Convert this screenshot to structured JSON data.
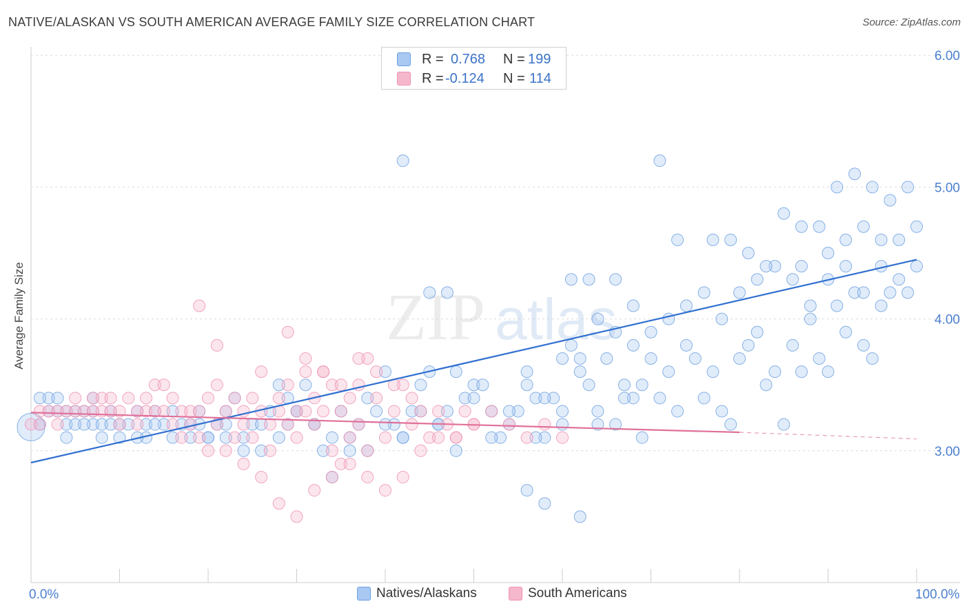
{
  "title": "NATIVE/ALASKAN VS SOUTH AMERICAN AVERAGE FAMILY SIZE CORRELATION CHART",
  "source": "Source: ZipAtlas.com",
  "watermark": {
    "zip": "ZIP",
    "atlas": "atlas"
  },
  "stats": {
    "r_label": "R =",
    "n_label": "N =",
    "rows": [
      {
        "r": "0.768",
        "n": "199",
        "color": "#a9c8f2"
      },
      {
        "r": "-0.124",
        "n": "114",
        "color": "#f5b7cb"
      }
    ]
  },
  "chart_data": {
    "type": "scatter",
    "title": "NATIVE/ALASKAN VS SOUTH AMERICAN AVERAGE FAMILY SIZE CORRELATION CHART",
    "xlabel": "",
    "ylabel": "Average Family Size",
    "xlim": [
      0,
      100
    ],
    "ylim": [
      2.0,
      6.1
    ],
    "y_ticks": [
      3.0,
      4.0,
      5.0,
      6.0
    ],
    "y_tick_labels": [
      "3.00",
      "4.00",
      "5.00",
      "6.00"
    ],
    "x_tick_labels": [
      "0.0%",
      "100.0%"
    ],
    "grid": true,
    "legend_position": "bottom",
    "series": [
      {
        "name": "Natives/Alaskans",
        "color": "#6a9fe0",
        "trend": {
          "x": [
            0,
            100
          ],
          "y": [
            2.91,
            4.45
          ]
        },
        "points": [
          [
            2,
            3.4
          ],
          [
            2,
            3.3
          ],
          [
            3,
            3.4
          ],
          [
            4,
            3.3
          ],
          [
            4,
            3.2
          ],
          [
            5,
            3.2
          ],
          [
            6,
            3.3
          ],
          [
            7,
            3.2
          ],
          [
            7,
            3.4
          ],
          [
            8,
            3.2
          ],
          [
            9,
            3.3
          ],
          [
            9,
            3.2
          ],
          [
            10,
            3.1
          ],
          [
            11,
            3.2
          ],
          [
            12,
            3.3
          ],
          [
            13,
            3.1
          ],
          [
            13,
            3.2
          ],
          [
            14,
            3.3
          ],
          [
            15,
            3.2
          ],
          [
            16,
            3.1
          ],
          [
            17,
            3.2
          ],
          [
            18,
            3.1
          ],
          [
            19,
            3.2
          ],
          [
            19,
            3.3
          ],
          [
            20,
            3.1
          ],
          [
            21,
            3.2
          ],
          [
            22,
            3.3
          ],
          [
            22,
            3.1
          ],
          [
            23,
            3.4
          ],
          [
            24,
            3.1
          ],
          [
            25,
            3.2
          ],
          [
            26,
            3.0
          ],
          [
            27,
            3.3
          ],
          [
            28,
            3.5
          ],
          [
            29,
            3.2
          ],
          [
            29,
            3.4
          ],
          [
            30,
            3.3
          ],
          [
            31,
            3.5
          ],
          [
            32,
            3.2
          ],
          [
            33,
            3.0
          ],
          [
            34,
            3.1
          ],
          [
            35,
            3.3
          ],
          [
            36,
            3.1
          ],
          [
            37,
            3.2
          ],
          [
            38,
            3.4
          ],
          [
            39,
            3.3
          ],
          [
            40,
            3.6
          ],
          [
            41,
            3.2
          ],
          [
            42,
            3.1
          ],
          [
            43,
            3.3
          ],
          [
            44,
            3.5
          ],
          [
            45,
            3.6
          ],
          [
            46,
            3.2
          ],
          [
            47,
            3.3
          ],
          [
            48,
            3.6
          ],
          [
            49,
            3.4
          ],
          [
            50,
            3.5
          ],
          [
            51,
            3.5
          ],
          [
            52,
            3.3
          ],
          [
            53,
            3.1
          ],
          [
            54,
            3.2
          ],
          [
            55,
            3.3
          ],
          [
            56,
            3.5
          ],
          [
            57,
            3.4
          ],
          [
            58,
            3.1
          ],
          [
            59,
            3.4
          ],
          [
            60,
            3.2
          ],
          [
            61,
            3.8
          ],
          [
            62,
            3.7
          ],
          [
            63,
            3.5
          ],
          [
            64,
            3.3
          ],
          [
            65,
            3.7
          ],
          [
            66,
            3.2
          ],
          [
            67,
            3.5
          ],
          [
            68,
            3.4
          ],
          [
            69,
            3.1
          ],
          [
            70,
            3.7
          ],
          [
            71,
            3.4
          ],
          [
            72,
            3.6
          ],
          [
            73,
            3.3
          ],
          [
            74,
            3.8
          ],
          [
            75,
            3.7
          ],
          [
            76,
            3.4
          ],
          [
            77,
            3.6
          ],
          [
            78,
            3.3
          ],
          [
            79,
            3.2
          ],
          [
            80,
            3.7
          ],
          [
            81,
            3.8
          ],
          [
            82,
            3.9
          ],
          [
            83,
            3.5
          ],
          [
            84,
            3.6
          ],
          [
            85,
            3.2
          ],
          [
            86,
            3.8
          ],
          [
            87,
            3.6
          ],
          [
            88,
            4.0
          ],
          [
            89,
            3.7
          ],
          [
            90,
            3.6
          ],
          [
            91,
            4.1
          ],
          [
            92,
            3.9
          ],
          [
            93,
            4.2
          ],
          [
            94,
            3.8
          ],
          [
            95,
            3.7
          ],
          [
            96,
            4.1
          ],
          [
            97,
            4.2
          ],
          [
            98,
            4.3
          ],
          [
            99,
            4.2
          ],
          [
            100,
            4.4
          ],
          [
            98,
            4.6
          ],
          [
            96,
            4.4
          ],
          [
            94,
            4.2
          ],
          [
            92,
            4.4
          ],
          [
            90,
            4.3
          ],
          [
            88,
            4.1
          ],
          [
            86,
            4.3
          ],
          [
            84,
            4.4
          ],
          [
            82,
            4.3
          ],
          [
            80,
            4.2
          ],
          [
            78,
            4.0
          ],
          [
            76,
            4.2
          ],
          [
            74,
            4.1
          ],
          [
            72,
            4.0
          ],
          [
            70,
            3.9
          ],
          [
            68,
            3.8
          ],
          [
            66,
            3.9
          ],
          [
            64,
            4.0
          ],
          [
            62,
            3.6
          ],
          [
            60,
            3.7
          ],
          [
            58,
            3.4
          ],
          [
            56,
            3.6
          ],
          [
            54,
            3.3
          ],
          [
            52,
            3.1
          ],
          [
            50,
            3.4
          ],
          [
            48,
            3.0
          ],
          [
            46,
            3.2
          ],
          [
            44,
            3.3
          ],
          [
            42,
            3.1
          ],
          [
            40,
            3.2
          ],
          [
            38,
            3.0
          ],
          [
            36,
            3.0
          ],
          [
            34,
            2.8
          ],
          [
            32,
            3.2
          ],
          [
            30,
            3.3
          ],
          [
            28,
            3.1
          ],
          [
            26,
            3.2
          ],
          [
            24,
            3.0
          ],
          [
            22,
            3.2
          ],
          [
            20,
            3.1
          ],
          [
            18,
            3.2
          ],
          [
            16,
            3.3
          ],
          [
            14,
            3.2
          ],
          [
            12,
            3.1
          ],
          [
            10,
            3.2
          ],
          [
            8,
            3.1
          ],
          [
            6,
            3.2
          ],
          [
            4,
            3.1
          ],
          [
            1,
            3.2
          ],
          [
            1,
            3.4
          ],
          [
            3,
            3.3
          ],
          [
            5,
            3.3
          ],
          [
            7,
            3.3
          ],
          [
            45,
            4.2
          ],
          [
            47,
            4.2
          ],
          [
            42,
            5.2
          ],
          [
            71,
            5.2
          ],
          [
            56,
            2.7
          ],
          [
            58,
            2.6
          ],
          [
            62,
            2.5
          ],
          [
            73,
            4.6
          ],
          [
            77,
            4.6
          ],
          [
            79,
            4.6
          ],
          [
            81,
            4.5
          ],
          [
            83,
            4.4
          ],
          [
            85,
            4.8
          ],
          [
            87,
            4.7
          ],
          [
            89,
            4.7
          ],
          [
            91,
            5.0
          ],
          [
            93,
            5.1
          ],
          [
            95,
            5.0
          ],
          [
            97,
            4.9
          ],
          [
            99,
            5.0
          ],
          [
            87,
            4.4
          ],
          [
            90,
            4.5
          ],
          [
            92,
            4.6
          ],
          [
            94,
            4.7
          ],
          [
            96,
            4.6
          ],
          [
            100,
            4.7
          ],
          [
            61,
            4.3
          ],
          [
            63,
            4.3
          ],
          [
            66,
            4.3
          ],
          [
            68,
            4.1
          ],
          [
            57,
            3.1
          ],
          [
            60,
            3.3
          ],
          [
            64,
            3.2
          ],
          [
            67,
            3.4
          ],
          [
            69,
            3.5
          ]
        ]
      },
      {
        "name": "South Americans",
        "color": "#ee8fb0",
        "trend": {
          "x": [
            0,
            80
          ],
          "y": [
            3.29,
            3.14
          ]
        },
        "trend_dashed": {
          "x": [
            80,
            100
          ],
          "y": [
            3.14,
            3.09
          ]
        },
        "points": [
          [
            0,
            3.2
          ],
          [
            1,
            3.3
          ],
          [
            1,
            3.2
          ],
          [
            2,
            3.3
          ],
          [
            3,
            3.2
          ],
          [
            3,
            3.3
          ],
          [
            4,
            3.3
          ],
          [
            5,
            3.3
          ],
          [
            5,
            3.4
          ],
          [
            6,
            3.3
          ],
          [
            7,
            3.4
          ],
          [
            7,
            3.3
          ],
          [
            8,
            3.4
          ],
          [
            8,
            3.3
          ],
          [
            9,
            3.3
          ],
          [
            9,
            3.4
          ],
          [
            10,
            3.3
          ],
          [
            10,
            3.2
          ],
          [
            11,
            3.4
          ],
          [
            12,
            3.3
          ],
          [
            12,
            3.2
          ],
          [
            13,
            3.4
          ],
          [
            13,
            3.3
          ],
          [
            14,
            3.5
          ],
          [
            14,
            3.3
          ],
          [
            15,
            3.3
          ],
          [
            15,
            3.5
          ],
          [
            16,
            3.2
          ],
          [
            16,
            3.4
          ],
          [
            17,
            3.3
          ],
          [
            17,
            3.1
          ],
          [
            18,
            3.3
          ],
          [
            18,
            3.2
          ],
          [
            19,
            3.3
          ],
          [
            19,
            3.1
          ],
          [
            20,
            3.4
          ],
          [
            20,
            3.0
          ],
          [
            21,
            3.5
          ],
          [
            21,
            3.2
          ],
          [
            22,
            3.3
          ],
          [
            22,
            3.0
          ],
          [
            23,
            3.4
          ],
          [
            23,
            3.1
          ],
          [
            24,
            3.3
          ],
          [
            24,
            3.2
          ],
          [
            25,
            3.4
          ],
          [
            25,
            3.1
          ],
          [
            26,
            3.6
          ],
          [
            26,
            3.3
          ],
          [
            27,
            3.2
          ],
          [
            27,
            3.0
          ],
          [
            28,
            3.4
          ],
          [
            28,
            3.3
          ],
          [
            29,
            3.5
          ],
          [
            29,
            3.2
          ],
          [
            30,
            3.3
          ],
          [
            30,
            3.1
          ],
          [
            31,
            3.6
          ],
          [
            31,
            3.3
          ],
          [
            32,
            3.4
          ],
          [
            32,
            3.2
          ],
          [
            33,
            3.3
          ],
          [
            33,
            3.6
          ],
          [
            34,
            3.5
          ],
          [
            34,
            3.0
          ],
          [
            35,
            3.3
          ],
          [
            35,
            2.9
          ],
          [
            36,
            3.4
          ],
          [
            36,
            3.1
          ],
          [
            37,
            3.2
          ],
          [
            37,
            3.5
          ],
          [
            38,
            3.7
          ],
          [
            38,
            3.0
          ],
          [
            39,
            3.4
          ],
          [
            40,
            3.1
          ],
          [
            41,
            3.3
          ],
          [
            42,
            3.5
          ],
          [
            43,
            3.2
          ],
          [
            44,
            3.3
          ],
          [
            45,
            3.1
          ],
          [
            46,
            3.3
          ],
          [
            47,
            3.2
          ],
          [
            48,
            3.1
          ],
          [
            49,
            3.3
          ],
          [
            50,
            3.2
          ],
          [
            52,
            3.3
          ],
          [
            54,
            3.2
          ],
          [
            56,
            3.1
          ],
          [
            58,
            3.2
          ],
          [
            60,
            3.1
          ],
          [
            19,
            4.1
          ],
          [
            21,
            3.8
          ],
          [
            29,
            3.9
          ],
          [
            31,
            3.7
          ],
          [
            33,
            3.6
          ],
          [
            35,
            3.5
          ],
          [
            37,
            3.7
          ],
          [
            39,
            3.6
          ],
          [
            41,
            3.5
          ],
          [
            43,
            3.4
          ],
          [
            24,
            2.9
          ],
          [
            26,
            2.8
          ],
          [
            28,
            2.6
          ],
          [
            30,
            2.5
          ],
          [
            32,
            2.7
          ],
          [
            34,
            2.8
          ],
          [
            36,
            2.9
          ],
          [
            38,
            2.8
          ],
          [
            40,
            2.7
          ],
          [
            42,
            2.8
          ],
          [
            44,
            3.0
          ],
          [
            46,
            3.1
          ],
          [
            48,
            3.1
          ],
          [
            50,
            3.2
          ]
        ]
      }
    ]
  }
}
